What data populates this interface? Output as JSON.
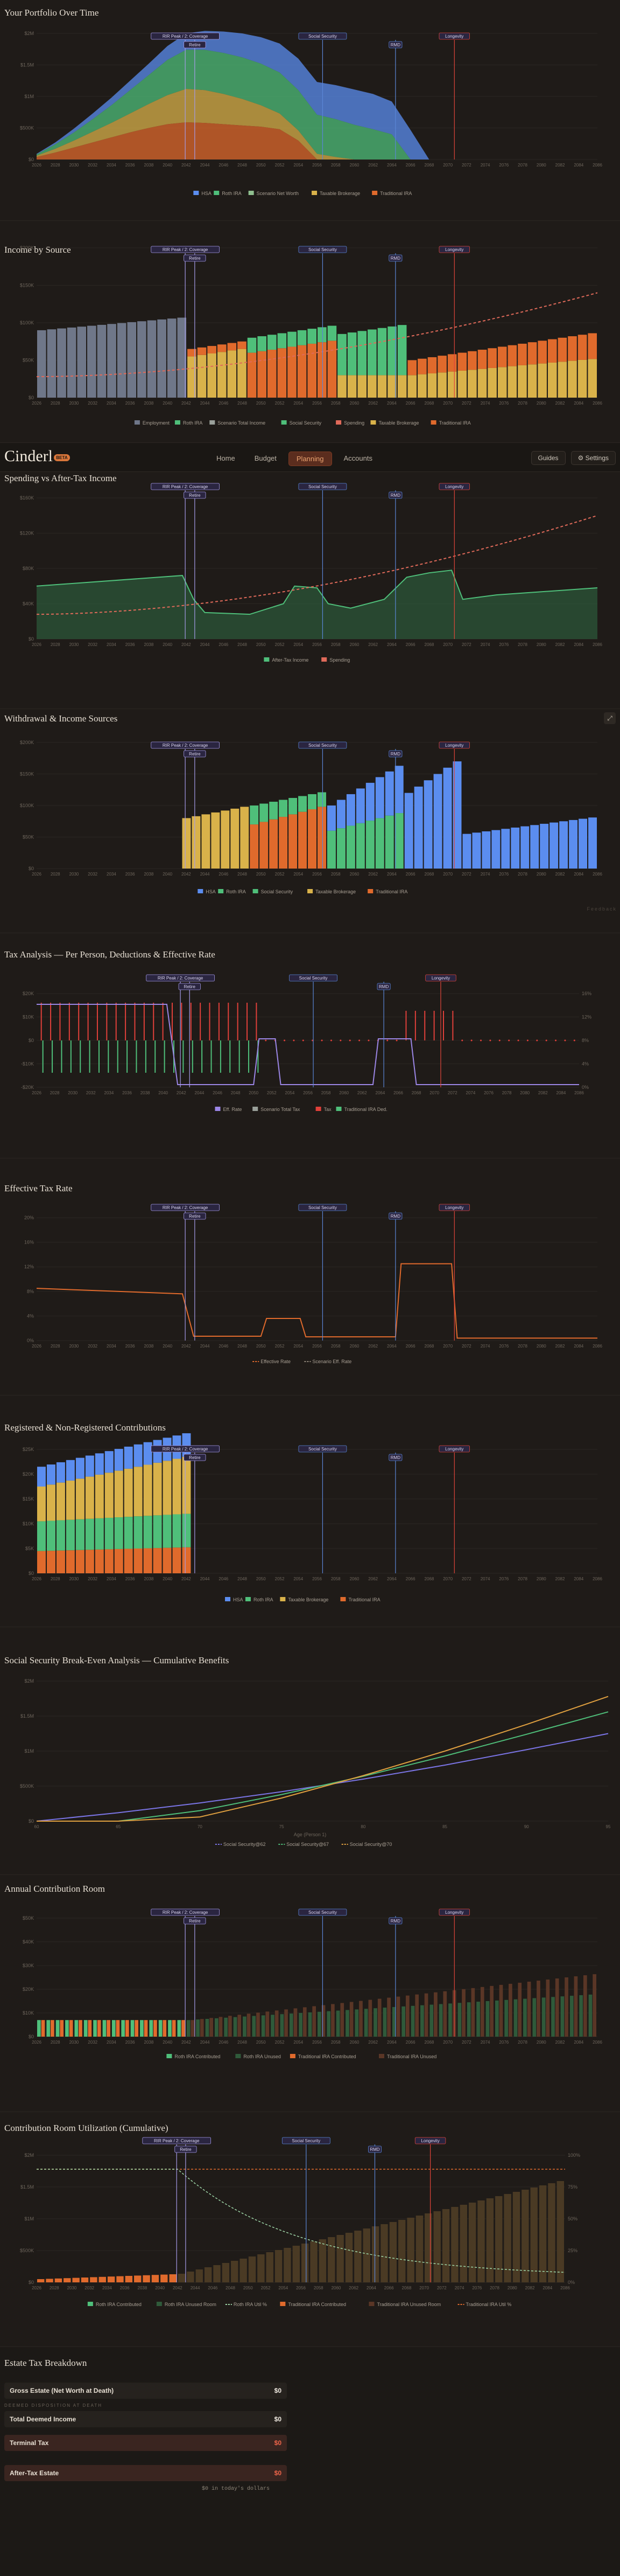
{
  "nav": {
    "logo": "Cinderl",
    "badge": "BETA",
    "tabs": [
      "Home",
      "Budget",
      "Planning",
      "Accounts"
    ],
    "active_tab": "Planning",
    "guides_label": "Guides",
    "settings_label": "Settings"
  },
  "milestones": [
    {
      "label": "RIR Peak",
      "color": "#a59be8"
    },
    {
      "label": "Retire",
      "color": "#a59be8"
    },
    {
      "label": "Social Security",
      "color": "#5a86d6"
    },
    {
      "label": "RMD",
      "color": "#5a86d6"
    },
    {
      "label": "Longevity",
      "color": "#e0453a"
    }
  ],
  "milestone_label_b": "2: Coverage",
  "colors": {
    "hsa": "#5b8def",
    "roth": "#4fbf7a",
    "taxable": "#d9b24a",
    "traditional": "#e06a2c",
    "employment": "#6f7789",
    "social_security": "#4fbf7a",
    "spending": "#e06a5a",
    "grid": "#2b2723",
    "axis": "#6d655b"
  },
  "sections": {
    "portfolio": {
      "title": "Your Portfolio Over Time",
      "legend": [
        "HSA",
        "Roth IRA",
        "Scenario Net Worth",
        "Taxable Brokerage",
        "Traditional IRA"
      ]
    },
    "income": {
      "title": "Income by Source",
      "legend": [
        "Employment",
        "Roth IRA",
        "Scenario Total Income",
        "Social Security",
        "Spending",
        "Taxable Brokerage",
        "Traditional IRA"
      ]
    },
    "spending": {
      "title": "Spending vs After-Tax Income",
      "legend": [
        "After-Tax Income",
        "Spending"
      ]
    },
    "withdrawal": {
      "title": "Withdrawal & Income Sources",
      "legend": [
        "HSA",
        "Roth IRA",
        "Social Security",
        "Taxable Brokerage",
        "Traditional IRA"
      ],
      "watermark": "Feedback"
    },
    "tax": {
      "title": "Tax Analysis — Per Person, Deductions & Effective Rate",
      "legend": [
        "Eff. Rate",
        "Scenario Total Tax",
        "Tax",
        "Traditional IRA Ded."
      ]
    },
    "efftax": {
      "title": "Effective Tax Rate",
      "legend": [
        "Effective Rate",
        "Scenario Eff. Rate"
      ]
    },
    "contrib": {
      "title": "Registered & Non-Registered Contributions",
      "legend": [
        "HSA",
        "Roth IRA",
        "Taxable Brokerage",
        "Traditional IRA"
      ]
    },
    "ss": {
      "title": "Social Security Break-Even Analysis — Cumulative Benefits",
      "xlabel": "Age (Person 1)",
      "legend": [
        "Social Security@62",
        "Social Security@67",
        "Social Security@70"
      ]
    },
    "room": {
      "title": "Annual Contribution Room",
      "legend": [
        "Roth IRA Contributed",
        "Roth IRA Unused",
        "Traditional IRA Contributed",
        "Traditional IRA Unused"
      ]
    },
    "util": {
      "title": "Contribution Room Utilization (Cumulative)",
      "legend": [
        "Roth IRA Contributed",
        "Roth IRA Unused Room",
        "Roth IRA Util %",
        "Traditional IRA Contributed",
        "Traditional IRA Unused Room",
        "Traditional IRA Util %"
      ]
    }
  },
  "estate": {
    "title": "Estate Tax Breakdown",
    "gross_label": "Gross Estate (Net Worth at Death)",
    "gross_value": "$0",
    "sub_label": "DEEMED DISPOSITION AT DEATH",
    "deemed_label": "Total Deemed Income",
    "deemed_value": "$0",
    "terminal_label": "Terminal Tax",
    "terminal_value": "$0",
    "after_label": "After-Tax Estate",
    "after_value": "$0",
    "note": "$0 in today's dollars"
  },
  "chart_data": [
    {
      "type": "area",
      "title": "Your Portfolio Over Time",
      "x": [
        2026,
        2028,
        2030,
        2032,
        2034,
        2036,
        2038,
        2040,
        2042,
        2044,
        2046,
        2048,
        2050,
        2052,
        2054,
        2056,
        2058,
        2060,
        2062,
        2064,
        2066,
        2068,
        2070,
        2072,
        2074,
        2076,
        2078,
        2080,
        2082,
        2084,
        2086
      ],
      "yticks": [
        "$0",
        "$500K",
        "$1M",
        "$1.5M",
        "$2M"
      ],
      "ylim": [
        0,
        2000000
      ],
      "series": [
        {
          "name": "Traditional IRA",
          "values": [
            40,
            110,
            190,
            270,
            350,
            430,
            500,
            560,
            590,
            580,
            560,
            540,
            520,
            480,
            300,
            0,
            0,
            0,
            0,
            0,
            0,
            0,
            0,
            0,
            0,
            0,
            0,
            0,
            0,
            0,
            0
          ]
        },
        {
          "name": "Taxable Brokerage",
          "values": [
            20,
            60,
            110,
            170,
            230,
            300,
            380,
            460,
            530,
            520,
            480,
            420,
            340,
            250,
            160,
            90,
            40,
            0,
            0,
            0,
            0,
            0,
            0,
            0,
            0,
            0,
            0,
            0,
            0,
            0,
            0
          ]
        },
        {
          "name": "Roth IRA",
          "values": [
            20,
            70,
            130,
            200,
            280,
            370,
            460,
            560,
            620,
            640,
            650,
            660,
            660,
            650,
            640,
            620,
            600,
            550,
            480,
            400,
            0,
            0,
            0,
            0,
            0,
            0,
            0,
            0,
            0,
            0,
            0
          ]
        },
        {
          "name": "HSA",
          "values": [
            10,
            30,
            60,
            90,
            120,
            150,
            180,
            220,
            260,
            300,
            340,
            380,
            420,
            460,
            500,
            520,
            540,
            560,
            560,
            520,
            470,
            0,
            0,
            0,
            0,
            0,
            0,
            0,
            0,
            0,
            0
          ]
        }
      ],
      "milestones": [
        "RIR Peak",
        "Retire",
        "Social Security",
        "RMD",
        "Longevity"
      ]
    },
    {
      "type": "bar",
      "title": "Income by Source",
      "x": [
        2026,
        2028,
        2030,
        2032,
        2034,
        2036,
        2038,
        2040,
        2042,
        2044,
        2046,
        2048,
        2050,
        2052,
        2054,
        2056,
        2058,
        2060,
        2062,
        2064,
        2066,
        2068,
        2070,
        2072,
        2074,
        2076,
        2078,
        2080,
        2082,
        2084,
        2086
      ],
      "yticks": [
        "$0",
        "$50K",
        "$100K",
        "$150K",
        "$200K"
      ],
      "ylim": [
        0,
        200000
      ],
      "bars": 56,
      "spending_line": "rising from $28K to $140K"
    },
    {
      "type": "area",
      "title": "Spending vs After-Tax Income",
      "yticks": [
        "$0",
        "$40K",
        "$80K",
        "$120K",
        "$160K"
      ],
      "ylim": [
        0,
        160000
      ]
    },
    {
      "type": "bar",
      "title": "Withdrawal & Income Sources",
      "yticks": [
        "$0",
        "$50K",
        "$100K",
        "$150K",
        "$200K"
      ],
      "ylim": [
        0,
        200000
      ]
    },
    {
      "type": "bar",
      "title": "Tax Analysis — Per Person, Deductions & Effective Rate",
      "yticks": [
        "-$20K",
        "-$10K",
        "$0",
        "$10K",
        "$20K"
      ],
      "y2ticks": [
        "0%",
        "4%",
        "8%",
        "12%",
        "16%"
      ]
    },
    {
      "type": "line",
      "title": "Effective Tax Rate",
      "yticks": [
        "0%",
        "4%",
        "8%",
        "12%",
        "16%",
        "20%"
      ],
      "ylim": [
        0,
        20
      ]
    },
    {
      "type": "bar",
      "title": "Registered & Non-Registered Contributions",
      "yticks": [
        "$0",
        "$5K",
        "$10K",
        "$15K",
        "$20K",
        "$25K"
      ],
      "ylim": [
        0,
        25000
      ]
    },
    {
      "type": "line",
      "title": "Social Security Break-Even Analysis — Cumulative Benefits",
      "xlabel": "Age (Person 1)",
      "x": [
        60,
        65,
        70,
        75,
        80,
        85,
        90,
        95
      ],
      "yticks": [
        "$0",
        "$500K",
        "$1M",
        "$1.5M",
        "$2M"
      ],
      "ylim": [
        0,
        2000000
      ],
      "series": [
        {
          "name": "Social Security@62",
          "values": [
            0,
            120000,
            260000,
            420000,
            600000,
            800000,
            1020000,
            1250000
          ]
        },
        {
          "name": "Social Security@67",
          "values": [
            0,
            0,
            150000,
            380000,
            640000,
            930000,
            1240000,
            1560000
          ]
        },
        {
          "name": "Social Security@70",
          "values": [
            0,
            0,
            60000,
            330000,
            650000,
            1000000,
            1380000,
            1780000
          ]
        }
      ]
    },
    {
      "type": "bar",
      "title": "Annual Contribution Room",
      "yticks": [
        "$0",
        "$10K",
        "$20K",
        "$30K",
        "$40K",
        "$50K"
      ],
      "ylim": [
        0,
        50000
      ]
    },
    {
      "type": "bar",
      "title": "Contribution Room Utilization (Cumulative)",
      "yticks": [
        "$0",
        "$500K",
        "$1M",
        "$1.5M",
        "$2M"
      ],
      "y2ticks": [
        "0%",
        "25%",
        "50%",
        "75%",
        "100%"
      ]
    }
  ]
}
